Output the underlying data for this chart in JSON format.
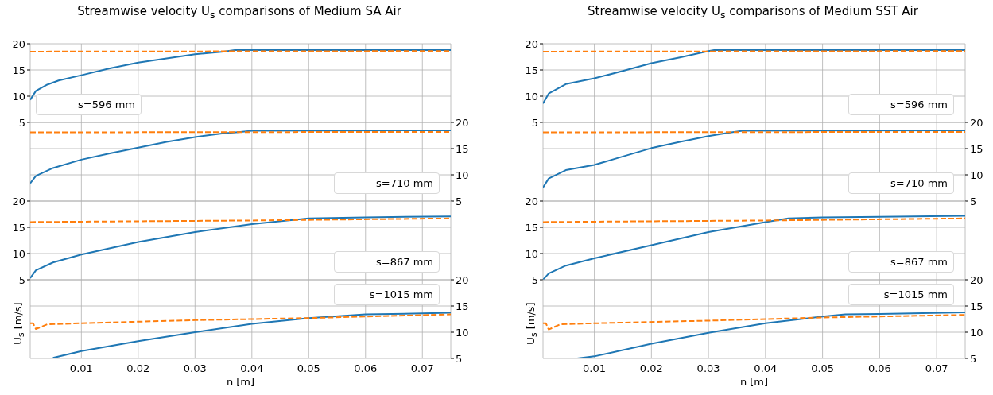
{
  "chart_data": [
    {
      "type": "line",
      "title": "Streamwise velocity U$_{s}$ comparisons of Medium SA Air",
      "annotations": [
        "s=596 mm"
      ],
      "xlim": [
        0.001,
        0.075
      ],
      "xticks": [
        0.01,
        0.02,
        0.03,
        0.04,
        0.05,
        0.06,
        0.07
      ],
      "tick_labels": "y",
      "ylim": [
        5,
        20
      ],
      "yticks": [
        5,
        10,
        15,
        20
      ],
      "grid": true,
      "series": [
        {
          "color": "#1f77b4",
          "x": [
            0.001,
            0.002,
            0.004,
            0.006,
            0.01,
            0.015,
            0.02,
            0.025,
            0.03,
            0.035,
            0.037,
            0.05,
            0.075
          ],
          "values": [
            9.3,
            11.0,
            12.2,
            13.0,
            14.0,
            15.3,
            16.4,
            17.2,
            18.0,
            18.5,
            18.8,
            18.8,
            18.8
          ]
        },
        {
          "color": "#ff7f0e",
          "line_style": "dashed",
          "x": [
            0.001,
            0.075
          ],
          "values": [
            18.5,
            18.6
          ]
        }
      ]
    },
    {
      "type": "line",
      "annotations": [
        "s=710 mm"
      ],
      "xlim": [
        0.001,
        0.075
      ],
      "xticks": [
        0.01,
        0.02,
        0.03,
        0.04,
        0.05,
        0.06,
        0.07
      ],
      "tick_labels": "y",
      "y2lim": [
        5,
        20
      ],
      "y2ticks": [
        5,
        10,
        15,
        20
      ],
      "grid": true,
      "series": [
        {
          "color": "#1f77b4",
          "axis": "y2",
          "x": [
            0.001,
            0.002,
            0.005,
            0.01,
            0.015,
            0.02,
            0.025,
            0.03,
            0.035,
            0.038,
            0.04,
            0.075
          ],
          "values": [
            8.4,
            9.8,
            11.3,
            12.9,
            14.1,
            15.2,
            16.3,
            17.2,
            17.9,
            18.2,
            18.4,
            18.5
          ]
        },
        {
          "color": "#ff7f0e",
          "axis": "y2",
          "line_style": "dashed",
          "x": [
            0.001,
            0.075
          ],
          "values": [
            18.1,
            18.2
          ]
        }
      ]
    },
    {
      "type": "line",
      "annotations": [
        "s=867 mm"
      ],
      "xlim": [
        0.001,
        0.075
      ],
      "xticks": [
        0.01,
        0.02,
        0.03,
        0.04,
        0.05,
        0.06,
        0.07
      ],
      "tick_labels": "y",
      "ylim": [
        5,
        20
      ],
      "yticks": [
        5,
        10,
        15,
        20
      ],
      "grid": true,
      "series": [
        {
          "color": "#1f77b4",
          "x": [
            0.001,
            0.002,
            0.005,
            0.01,
            0.02,
            0.03,
            0.04,
            0.05,
            0.06,
            0.075
          ],
          "values": [
            5.3,
            6.8,
            8.3,
            9.8,
            12.2,
            14.1,
            15.6,
            16.7,
            16.9,
            17.1
          ]
        },
        {
          "color": "#ff7f0e",
          "line_style": "dashed",
          "x": [
            0.001,
            0.04,
            0.075
          ],
          "values": [
            16.0,
            16.3,
            16.7
          ]
        }
      ]
    },
    {
      "type": "line",
      "xlabel": "n [m]",
      "ylabel": "U$_{s}$ [m/s]",
      "annotations": [
        "s=1015 mm"
      ],
      "xlim": [
        0.001,
        0.075
      ],
      "xticks": [
        0.01,
        0.02,
        0.03,
        0.04,
        0.05,
        0.06,
        0.07
      ],
      "y2lim": [
        5,
        20
      ],
      "y2ticks": [
        5,
        10,
        15,
        20
      ],
      "grid": true,
      "series": [
        {
          "color": "#1f77b4",
          "axis": "y2",
          "x": [
            0.005,
            0.01,
            0.02,
            0.03,
            0.04,
            0.05,
            0.06,
            0.075
          ],
          "values": [
            5.1,
            6.4,
            8.3,
            10.0,
            11.6,
            12.7,
            13.4,
            13.7
          ]
        },
        {
          "color": "#ff7f0e",
          "axis": "y2",
          "line_style": "dashed",
          "x": [
            0.001,
            0.0015,
            0.002,
            0.004,
            0.01,
            0.03,
            0.05,
            0.075
          ],
          "values": [
            11.7,
            11.7,
            10.6,
            11.5,
            11.7,
            12.3,
            12.7,
            13.4
          ]
        }
      ]
    },
    {
      "type": "line",
      "title": "Streamwise velocity U$_{s}$ comparisons of Medium SST Air",
      "annotations": [
        "s=596 mm"
      ],
      "xlim": [
        0.001,
        0.075
      ],
      "xticks": [
        0.01,
        0.02,
        0.03,
        0.04,
        0.05,
        0.06,
        0.07
      ],
      "tick_labels": "y",
      "ylim": [
        5,
        20
      ],
      "yticks": [
        5,
        10,
        15,
        20
      ],
      "grid": true,
      "series": [
        {
          "color": "#1f77b4",
          "x": [
            0.001,
            0.002,
            0.005,
            0.01,
            0.015,
            0.02,
            0.025,
            0.03,
            0.031,
            0.075
          ],
          "values": [
            8.6,
            10.5,
            12.3,
            13.4,
            14.8,
            16.3,
            17.4,
            18.6,
            18.8,
            18.8
          ]
        },
        {
          "color": "#ff7f0e",
          "line_style": "dashed",
          "x": [
            0.001,
            0.075
          ],
          "values": [
            18.5,
            18.6
          ]
        }
      ]
    },
    {
      "type": "line",
      "annotations": [
        "s=710 mm"
      ],
      "xlim": [
        0.001,
        0.075
      ],
      "xticks": [
        0.01,
        0.02,
        0.03,
        0.04,
        0.05,
        0.06,
        0.07
      ],
      "tick_labels": "y",
      "y2lim": [
        5,
        20
      ],
      "y2ticks": [
        5,
        10,
        15,
        20
      ],
      "grid": true,
      "series": [
        {
          "color": "#1f77b4",
          "axis": "y2",
          "x": [
            0.001,
            0.002,
            0.005,
            0.01,
            0.015,
            0.02,
            0.025,
            0.03,
            0.034,
            0.036,
            0.075
          ],
          "values": [
            7.6,
            9.3,
            10.9,
            11.9,
            13.5,
            15.1,
            16.3,
            17.4,
            18.1,
            18.4,
            18.5
          ]
        },
        {
          "color": "#ff7f0e",
          "axis": "y2",
          "line_style": "dashed",
          "x": [
            0.001,
            0.075
          ],
          "values": [
            18.1,
            18.2
          ]
        }
      ]
    },
    {
      "type": "line",
      "annotations": [
        "s=867 mm"
      ],
      "xlim": [
        0.001,
        0.075
      ],
      "xticks": [
        0.01,
        0.02,
        0.03,
        0.04,
        0.05,
        0.06,
        0.07
      ],
      "tick_labels": "y",
      "ylim": [
        5,
        20
      ],
      "yticks": [
        5,
        10,
        15,
        20
      ],
      "grid": true,
      "series": [
        {
          "color": "#1f77b4",
          "x": [
            0.001,
            0.002,
            0.005,
            0.01,
            0.02,
            0.03,
            0.04,
            0.044,
            0.05,
            0.06,
            0.075
          ],
          "values": [
            5.0,
            6.2,
            7.7,
            9.1,
            11.6,
            14.1,
            16.0,
            16.7,
            16.9,
            17.0,
            17.2
          ]
        },
        {
          "color": "#ff7f0e",
          "line_style": "dashed",
          "x": [
            0.001,
            0.04,
            0.075
          ],
          "values": [
            16.0,
            16.3,
            16.7
          ]
        }
      ]
    },
    {
      "type": "line",
      "xlabel": "n [m]",
      "ylabel": "U$_{s}$ [m/s]",
      "annotations": [
        "s=1015 mm"
      ],
      "xlim": [
        0.001,
        0.075
      ],
      "xticks": [
        0.01,
        0.02,
        0.03,
        0.04,
        0.05,
        0.06,
        0.07
      ],
      "y2lim": [
        5,
        20
      ],
      "y2ticks": [
        5,
        10,
        15,
        20
      ],
      "grid": true,
      "series": [
        {
          "color": "#1f77b4",
          "axis": "y2",
          "x": [
            0.007,
            0.01,
            0.02,
            0.03,
            0.04,
            0.05,
            0.054,
            0.06,
            0.075
          ],
          "values": [
            5.0,
            5.4,
            7.8,
            9.9,
            11.7,
            13.0,
            13.4,
            13.5,
            13.8
          ]
        },
        {
          "color": "#ff7f0e",
          "axis": "y2",
          "line_style": "dashed",
          "x": [
            0.001,
            0.0015,
            0.002,
            0.004,
            0.01,
            0.03,
            0.05,
            0.075
          ],
          "values": [
            11.7,
            11.7,
            10.5,
            11.5,
            11.7,
            12.2,
            12.8,
            13.3
          ]
        }
      ]
    }
  ]
}
